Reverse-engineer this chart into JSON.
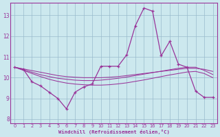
{
  "title": "",
  "xlabel": "Windchill (Refroidissement éolien,°C)",
  "background_color": "#cce8ee",
  "line_color": "#993399",
  "grid_color": "#99bbcc",
  "xlim": [
    -0.5,
    23.5
  ],
  "ylim": [
    7.8,
    13.6
  ],
  "yticks": [
    8,
    9,
    10,
    11,
    12,
    13
  ],
  "xticks": [
    0,
    1,
    2,
    3,
    4,
    5,
    6,
    7,
    8,
    9,
    10,
    11,
    12,
    13,
    14,
    15,
    16,
    17,
    18,
    19,
    20,
    21,
    22,
    23
  ],
  "line1_x": [
    0,
    1,
    2,
    3,
    4,
    5,
    6,
    7,
    8,
    9,
    10,
    11,
    12,
    13,
    14,
    15,
    16,
    17,
    18,
    19,
    20,
    21,
    22,
    23
  ],
  "line1_y": [
    10.5,
    10.4,
    9.8,
    9.6,
    9.3,
    9.0,
    8.5,
    9.3,
    9.55,
    9.7,
    10.55,
    10.55,
    10.55,
    11.1,
    12.5,
    13.35,
    13.2,
    11.05,
    11.75,
    10.65,
    10.5,
    9.35,
    9.05,
    9.05
  ],
  "line2_x": [
    0,
    1,
    2,
    3,
    4,
    5,
    6,
    7,
    8,
    9,
    10,
    11,
    12,
    13,
    14,
    15,
    16,
    17,
    18,
    19,
    20,
    21,
    22,
    23
  ],
  "line2_y": [
    10.5,
    10.42,
    10.34,
    10.26,
    10.18,
    10.1,
    10.05,
    10.02,
    10.0,
    10.0,
    10.0,
    10.02,
    10.05,
    10.1,
    10.15,
    10.2,
    10.25,
    10.3,
    10.35,
    10.4,
    10.45,
    10.45,
    10.4,
    10.3
  ],
  "line3_x": [
    0,
    1,
    2,
    3,
    4,
    5,
    6,
    7,
    8,
    9,
    10,
    11,
    12,
    13,
    14,
    15,
    16,
    17,
    18,
    19,
    20,
    21,
    22,
    23
  ],
  "line3_y": [
    10.5,
    10.38,
    10.26,
    10.14,
    10.05,
    9.97,
    9.92,
    9.88,
    9.86,
    9.86,
    9.88,
    9.92,
    9.97,
    10.03,
    10.1,
    10.17,
    10.24,
    10.31,
    10.38,
    10.45,
    10.5,
    10.5,
    10.35,
    10.15
  ],
  "line4_x": [
    0,
    1,
    2,
    3,
    4,
    5,
    6,
    7,
    8,
    9,
    10,
    11,
    12,
    13,
    14,
    15,
    16,
    17,
    18,
    19,
    20,
    21,
    22,
    23
  ],
  "line4_y": [
    10.5,
    10.35,
    10.2,
    10.05,
    9.92,
    9.82,
    9.74,
    9.69,
    9.66,
    9.64,
    9.64,
    9.66,
    9.7,
    9.75,
    9.82,
    9.89,
    9.97,
    10.05,
    10.13,
    10.2,
    10.27,
    10.3,
    10.2,
    10.0
  ]
}
